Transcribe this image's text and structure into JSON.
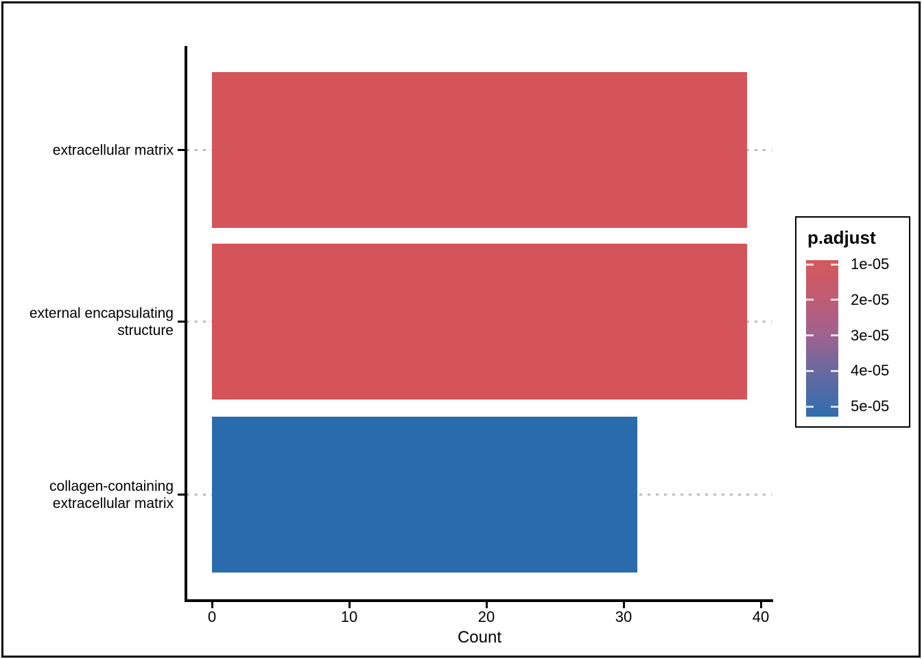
{
  "chart_data": {
    "type": "bar",
    "orientation": "horizontal",
    "title": "",
    "xlabel": "Count",
    "ylabel": "",
    "xlim": [
      0,
      40.9
    ],
    "x_ticks": [
      0,
      10,
      20,
      30,
      40
    ],
    "grid": "dotted gray horizontal gridline per category, drawn behind bars",
    "legend_position": "right",
    "categories": [
      "extracellular matrix",
      "external encapsulating structure",
      "collagen-containing extracellular matrix"
    ],
    "values": [
      39,
      39,
      31
    ],
    "bars": [
      {
        "label_lines": [
          "extracellular matrix"
        ],
        "value": 39,
        "color": "#d45459"
      },
      {
        "label_lines": [
          "external encapsulating",
          "structure"
        ],
        "value": 39,
        "color": "#d45459"
      },
      {
        "label_lines": [
          "collagen-containing",
          "extracellular matrix"
        ],
        "value": 31,
        "color": "#2a6bae"
      }
    ],
    "legend": {
      "title": "p.adjust",
      "labels": [
        "1e-05",
        "2e-05",
        "3e-05",
        "4e-05",
        "5e-05"
      ],
      "gradient_stops": [
        {
          "color": "#d4595b",
          "pos": 0
        },
        {
          "color": "#c05c74",
          "pos": 25
        },
        {
          "color": "#9f6290",
          "pos": 48
        },
        {
          "color": "#68699f",
          "pos": 71
        },
        {
          "color": "#2f6db0",
          "pos": 100
        }
      ]
    },
    "colors": {
      "background": "#ffffff",
      "axis": "#000000",
      "gridline_dots": "#bdbdbd",
      "border": "#000000",
      "bar_red": "#d45459",
      "bar_blue": "#2a6bae"
    }
  }
}
